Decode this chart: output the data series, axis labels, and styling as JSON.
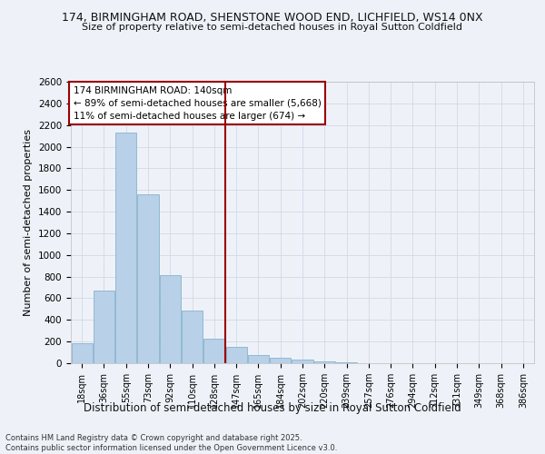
{
  "title1": "174, BIRMINGHAM ROAD, SHENSTONE WOOD END, LICHFIELD, WS14 0NX",
  "title2": "Size of property relative to semi-detached houses in Royal Sutton Coldfield",
  "xlabel": "Distribution of semi-detached houses by size in Royal Sutton Coldfield",
  "ylabel": "Number of semi-detached properties",
  "annotation_title": "174 BIRMINGHAM ROAD: 140sqm",
  "annotation_line1": "← 89% of semi-detached houses are smaller (5,668)",
  "annotation_line2": "11% of semi-detached houses are larger (674) →",
  "footer1": "Contains HM Land Registry data © Crown copyright and database right 2025.",
  "footer2": "Contains public sector information licensed under the Open Government Licence v3.0.",
  "property_size": 140,
  "bar_labels": [
    "18sqm",
    "36sqm",
    "55sqm",
    "73sqm",
    "92sqm",
    "110sqm",
    "128sqm",
    "147sqm",
    "165sqm",
    "184sqm",
    "202sqm",
    "220sqm",
    "239sqm",
    "257sqm",
    "276sqm",
    "294sqm",
    "312sqm",
    "331sqm",
    "349sqm",
    "368sqm",
    "386sqm"
  ],
  "bar_values": [
    185,
    670,
    2130,
    1560,
    810,
    490,
    230,
    155,
    75,
    50,
    30,
    15,
    5,
    0,
    0,
    0,
    0,
    0,
    0,
    0,
    0
  ],
  "bar_color": "#b8d0e8",
  "bar_edge_color": "#7aaac8",
  "vline_color": "#990000",
  "ylim": [
    0,
    2600
  ],
  "yticks": [
    0,
    200,
    400,
    600,
    800,
    1000,
    1200,
    1400,
    1600,
    1800,
    2000,
    2200,
    2400,
    2600
  ],
  "grid_color": "#d0dae8",
  "bg_color": "#eef2f8",
  "annotation_box_color": "#990000",
  "figsize": [
    6.0,
    5.0
  ],
  "dpi": 100
}
